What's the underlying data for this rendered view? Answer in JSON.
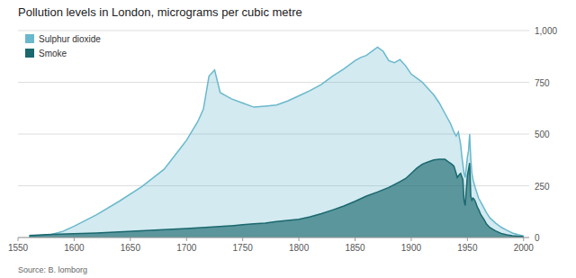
{
  "chart_data": {
    "type": "area",
    "title": "Pollution levels in London, micrograms per cubic metre",
    "annotations": [
      "Source: B. lomborg"
    ],
    "xlim": [
      1550,
      2005
    ],
    "xticks": [
      1550,
      1600,
      1650,
      1700,
      1750,
      1800,
      1850,
      1900,
      1950,
      2000
    ],
    "ylim": [
      0,
      1000
    ],
    "yticks": [
      0,
      250,
      500,
      750,
      {
        "value": 1000,
        "label": "1,000"
      }
    ],
    "grid": true,
    "legend": "upper left",
    "series": [
      {
        "name": "Sulphur dioxide",
        "color": "#6ab8cc",
        "x": [
          1560,
          1580,
          1590,
          1600,
          1620,
          1640,
          1660,
          1680,
          1695,
          1700,
          1710,
          1715,
          1720,
          1725,
          1730,
          1735,
          1740,
          1750,
          1760,
          1770,
          1780,
          1790,
          1800,
          1810,
          1820,
          1830,
          1840,
          1850,
          1855,
          1860,
          1870,
          1875,
          1880,
          1885,
          1890,
          1895,
          1900,
          1905,
          1910,
          1915,
          1920,
          1925,
          1930,
          1935,
          1938,
          1940,
          1942,
          1944,
          1945,
          1947,
          1948,
          1950,
          1951,
          1952,
          1953,
          1954,
          1955,
          1957,
          1960,
          1963,
          1967,
          1970,
          1975,
          1980,
          1985,
          1990,
          1995,
          2000
        ],
        "values": [
          5,
          15,
          30,
          55,
          110,
          175,
          245,
          330,
          435,
          470,
          560,
          620,
          780,
          810,
          700,
          685,
          670,
          650,
          630,
          635,
          640,
          660,
          685,
          710,
          740,
          780,
          815,
          855,
          870,
          880,
          920,
          900,
          855,
          845,
          860,
          830,
          790,
          770,
          750,
          720,
          690,
          650,
          600,
          550,
          510,
          490,
          510,
          450,
          395,
          310,
          290,
          390,
          420,
          500,
          380,
          310,
          280,
          240,
          190,
          160,
          120,
          95,
          70,
          50,
          35,
          22,
          14,
          8
        ]
      },
      {
        "name": "Smoke",
        "color": "#1a686e",
        "x": [
          1560,
          1580,
          1600,
          1620,
          1640,
          1660,
          1680,
          1700,
          1720,
          1740,
          1750,
          1760,
          1770,
          1780,
          1790,
          1800,
          1810,
          1820,
          1830,
          1840,
          1850,
          1860,
          1870,
          1880,
          1890,
          1895,
          1900,
          1905,
          1910,
          1915,
          1920,
          1925,
          1930,
          1932,
          1934,
          1936,
          1938,
          1940,
          1941,
          1943,
          1944,
          1945,
          1946,
          1947,
          1948,
          1949,
          1950,
          1951,
          1952,
          1953,
          1954,
          1955,
          1956,
          1957,
          1958,
          1959,
          1960,
          1962,
          1965,
          1967,
          1970,
          1975,
          1980,
          1985,
          1990,
          1995,
          2000
        ],
        "values": [
          10,
          15,
          18,
          22,
          27,
          33,
          38,
          43,
          50,
          57,
          62,
          66,
          70,
          77,
          83,
          88,
          100,
          115,
          133,
          152,
          175,
          200,
          220,
          242,
          270,
          285,
          310,
          335,
          355,
          365,
          375,
          378,
          378,
          370,
          362,
          355,
          345,
          310,
          290,
          305,
          310,
          295,
          280,
          180,
          155,
          230,
          300,
          330,
          360,
          200,
          180,
          190,
          185,
          175,
          160,
          145,
          135,
          110,
          85,
          65,
          48,
          32,
          20,
          13,
          9,
          6,
          4
        ]
      }
    ]
  }
}
